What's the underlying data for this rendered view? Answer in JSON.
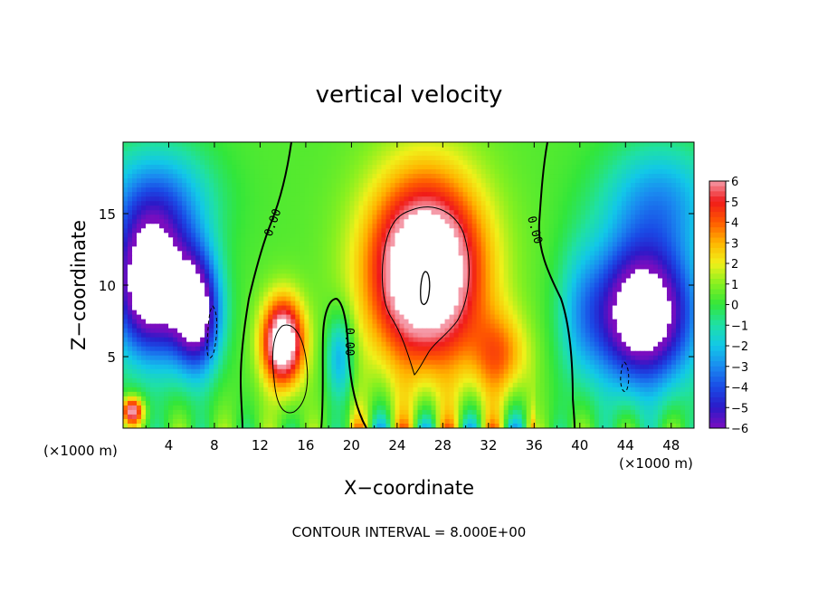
{
  "chart_data": {
    "type": "heatmap",
    "title": "vertical velocity",
    "xlabel": "X−coordinate",
    "ylabel": "Z−coordinate",
    "x_unit": "(×1000 m)",
    "y_unit": "(×1000 m)",
    "xlim": [
      0,
      50
    ],
    "ylim": [
      0,
      20
    ],
    "x_ticks": [
      4,
      8,
      12,
      16,
      20,
      24,
      28,
      32,
      36,
      40,
      44,
      48
    ],
    "y_ticks": [
      5,
      10,
      15
    ],
    "contour_interval_text": "CONTOUR INTERVAL = 8.000E+00",
    "contour_labels": [
      "0.00",
      "0.00",
      "0.00"
    ],
    "colorbar": {
      "min": -6,
      "max": 6,
      "ticks": [
        6,
        5,
        4,
        3,
        2,
        1,
        0,
        -1,
        -2,
        -3,
        -4,
        -5,
        -6
      ],
      "tick_labels": [
        "6",
        "5",
        "4",
        "3",
        "2",
        "1",
        "0",
        "−1",
        "−2",
        "−3",
        "−4",
        "−5",
        "−6"
      ]
    },
    "features": [
      {
        "kind": "updraft",
        "x": 26.5,
        "z": 11,
        "sx": 5,
        "sz": 6.5,
        "amp": 9
      },
      {
        "kind": "updraft",
        "x": 14,
        "z": 6,
        "sx": 1.8,
        "sz": 3,
        "amp": 8
      },
      {
        "kind": "updraft",
        "x": 33,
        "z": 5,
        "sx": 2.5,
        "sz": 3,
        "amp": 3
      },
      {
        "kind": "updraft",
        "x": 0.8,
        "z": 1.2,
        "sx": 0.9,
        "sz": 0.9,
        "amp": 6
      },
      {
        "kind": "downdraft",
        "x": 2.5,
        "z": 10,
        "sx": 3.5,
        "sz": 5,
        "amp": -9
      },
      {
        "kind": "downdraft",
        "x": 6.5,
        "z": 8,
        "sx": 2,
        "sz": 4,
        "amp": -7
      },
      {
        "kind": "downdraft",
        "x": 45.5,
        "z": 8,
        "sx": 4.5,
        "sz": 5,
        "amp": -9
      },
      {
        "kind": "downdraft",
        "x": 19,
        "z": 5,
        "sx": 1.2,
        "sz": 3,
        "amp": -3
      },
      {
        "kind": "downdraft",
        "x": 40,
        "z": 8,
        "sx": 2,
        "sz": 5,
        "amp": -1.5
      }
    ]
  }
}
